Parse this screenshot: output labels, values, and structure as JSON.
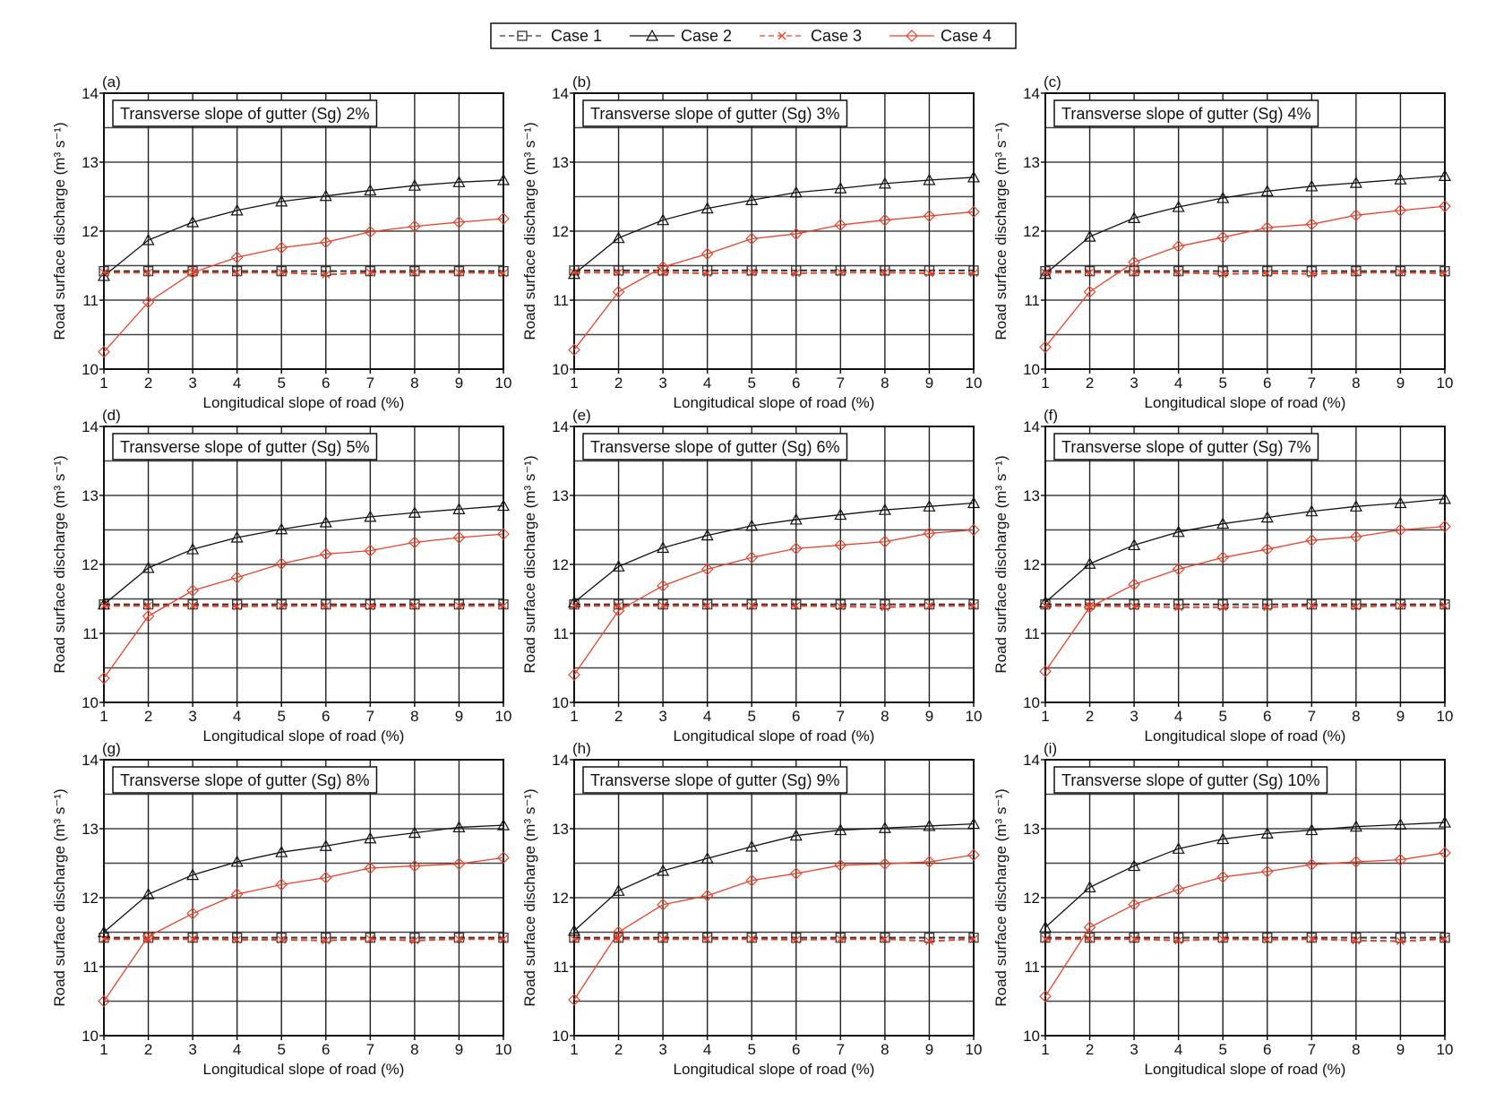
{
  "legend": [
    {
      "name": "Case 1",
      "color": "#333333",
      "dash": true,
      "marker": "square"
    },
    {
      "name": "Case 2",
      "color": "#111111",
      "dash": false,
      "marker": "triangle"
    },
    {
      "name": "Case 3",
      "color": "#e8432a",
      "dash": true,
      "marker": "x"
    },
    {
      "name": "Case 4",
      "color": "#e8432a",
      "dash": false,
      "marker": "diamond"
    }
  ],
  "chart_data": [
    {
      "type": "line",
      "panel": "(a)",
      "title": "Transverse slope of gutter (Sg) 2%",
      "xlabel": "Longitudical slope of road (%)",
      "ylabel": "Road surface discharge (m³ s⁻¹)",
      "x": [
        1,
        2,
        3,
        4,
        5,
        6,
        7,
        8,
        9,
        10
      ],
      "xlim": [
        1,
        10
      ],
      "ylim": [
        10,
        14
      ],
      "yticks": [
        10,
        11,
        12,
        13,
        14
      ],
      "grid": true,
      "series": [
        {
          "name": "Case 1",
          "values": [
            11.42,
            11.42,
            11.42,
            11.42,
            11.42,
            11.42,
            11.42,
            11.42,
            11.42,
            11.42
          ]
        },
        {
          "name": "Case 2",
          "values": [
            11.35,
            11.87,
            12.13,
            12.3,
            12.43,
            12.51,
            12.59,
            12.66,
            12.71,
            12.74
          ]
        },
        {
          "name": "Case 3",
          "values": [
            11.4,
            11.4,
            11.4,
            11.4,
            11.4,
            11.37,
            11.4,
            11.4,
            11.4,
            11.39
          ]
        },
        {
          "name": "Case 4",
          "values": [
            10.25,
            10.97,
            11.4,
            11.62,
            11.76,
            11.84,
            11.99,
            12.07,
            12.13,
            12.18
          ]
        }
      ]
    },
    {
      "type": "line",
      "panel": "(b)",
      "title": "Transverse slope of gutter (Sg) 3%",
      "xlabel": "Longitudical slope of road (%)",
      "ylabel": "Road surface discharge (m³ s⁻¹)",
      "x": [
        1,
        2,
        3,
        4,
        5,
        6,
        7,
        8,
        9,
        10
      ],
      "xlim": [
        1,
        10
      ],
      "ylim": [
        10,
        14
      ],
      "yticks": [
        10,
        11,
        12,
        13,
        14
      ],
      "grid": true,
      "series": [
        {
          "name": "Case 1",
          "values": [
            11.43,
            11.43,
            11.43,
            11.43,
            11.43,
            11.43,
            11.43,
            11.43,
            11.43,
            11.43
          ]
        },
        {
          "name": "Case 2",
          "values": [
            11.38,
            11.9,
            12.16,
            12.33,
            12.45,
            12.56,
            12.62,
            12.69,
            12.74,
            12.78
          ]
        },
        {
          "name": "Case 3",
          "values": [
            11.4,
            11.4,
            11.4,
            11.39,
            11.4,
            11.39,
            11.4,
            11.4,
            11.39,
            11.39
          ]
        },
        {
          "name": "Case 4",
          "values": [
            10.28,
            11.12,
            11.48,
            11.67,
            11.89,
            11.96,
            12.09,
            12.16,
            12.22,
            12.28
          ]
        }
      ]
    },
    {
      "type": "line",
      "panel": "(c)",
      "title": "Transverse slope of gutter (Sg) 4%",
      "xlabel": "Longitudical slope of road (%)",
      "ylabel": "Road surface discharge (m³ s⁻¹)",
      "x": [
        1,
        2,
        3,
        4,
        5,
        6,
        7,
        8,
        9,
        10
      ],
      "xlim": [
        1,
        10
      ],
      "ylim": [
        10,
        14
      ],
      "yticks": [
        10,
        11,
        12,
        13,
        14
      ],
      "grid": true,
      "series": [
        {
          "name": "Case 1",
          "values": [
            11.42,
            11.42,
            11.42,
            11.42,
            11.42,
            11.42,
            11.42,
            11.42,
            11.42,
            11.42
          ]
        },
        {
          "name": "Case 2",
          "values": [
            11.38,
            11.92,
            12.19,
            12.35,
            12.48,
            12.58,
            12.65,
            12.7,
            12.75,
            12.8
          ]
        },
        {
          "name": "Case 3",
          "values": [
            11.4,
            11.4,
            11.4,
            11.4,
            11.38,
            11.39,
            11.38,
            11.4,
            11.4,
            11.39
          ]
        },
        {
          "name": "Case 4",
          "values": [
            10.32,
            11.12,
            11.55,
            11.78,
            11.91,
            12.05,
            12.1,
            12.23,
            12.3,
            12.36
          ]
        }
      ]
    },
    {
      "type": "line",
      "panel": "(d)",
      "title": "Transverse slope of gutter (Sg) 5%",
      "xlabel": "Longitudical slope of road (%)",
      "ylabel": "Road surface discharge (m³ s⁻¹)",
      "x": [
        1,
        2,
        3,
        4,
        5,
        6,
        7,
        8,
        9,
        10
      ],
      "xlim": [
        1,
        10
      ],
      "ylim": [
        10,
        14
      ],
      "yticks": [
        10,
        11,
        12,
        13,
        14
      ],
      "grid": true,
      "series": [
        {
          "name": "Case 1",
          "values": [
            11.42,
            11.42,
            11.42,
            11.42,
            11.42,
            11.42,
            11.42,
            11.42,
            11.42,
            11.42
          ]
        },
        {
          "name": "Case 2",
          "values": [
            11.42,
            11.95,
            12.22,
            12.39,
            12.51,
            12.61,
            12.69,
            12.75,
            12.8,
            12.85
          ]
        },
        {
          "name": "Case 3",
          "values": [
            11.4,
            11.4,
            11.4,
            11.39,
            11.4,
            11.4,
            11.39,
            11.4,
            11.4,
            11.4
          ]
        },
        {
          "name": "Case 4",
          "values": [
            10.35,
            11.25,
            11.62,
            11.81,
            12.01,
            12.15,
            12.2,
            12.32,
            12.39,
            12.44
          ]
        }
      ]
    },
    {
      "type": "line",
      "panel": "(e)",
      "title": "Transverse slope of gutter (Sg) 6%",
      "xlabel": "Longitudical slope of road (%)",
      "ylabel": "Road surface discharge (m³ s⁻¹)",
      "x": [
        1,
        2,
        3,
        4,
        5,
        6,
        7,
        8,
        9,
        10
      ],
      "xlim": [
        1,
        10
      ],
      "ylim": [
        10,
        14
      ],
      "yticks": [
        10,
        11,
        12,
        13,
        14
      ],
      "grid": true,
      "series": [
        {
          "name": "Case 1",
          "values": [
            11.42,
            11.42,
            11.42,
            11.42,
            11.42,
            11.42,
            11.42,
            11.42,
            11.42,
            11.42
          ]
        },
        {
          "name": "Case 2",
          "values": [
            11.45,
            11.97,
            12.24,
            12.42,
            12.56,
            12.65,
            12.72,
            12.79,
            12.84,
            12.89
          ]
        },
        {
          "name": "Case 3",
          "values": [
            11.4,
            11.4,
            11.4,
            11.4,
            11.4,
            11.4,
            11.39,
            11.38,
            11.4,
            11.4
          ]
        },
        {
          "name": "Case 4",
          "values": [
            10.4,
            11.33,
            11.69,
            11.93,
            12.1,
            12.23,
            12.28,
            12.33,
            12.45,
            12.5
          ]
        }
      ]
    },
    {
      "type": "line",
      "panel": "(f)",
      "title": "Transverse slope of gutter (Sg) 7%",
      "xlabel": "Longitudical slope of road (%)",
      "ylabel": "Road surface discharge (m³ s⁻¹)",
      "x": [
        1,
        2,
        3,
        4,
        5,
        6,
        7,
        8,
        9,
        10
      ],
      "xlim": [
        1,
        10
      ],
      "ylim": [
        10,
        14
      ],
      "yticks": [
        10,
        11,
        12,
        13,
        14
      ],
      "grid": true,
      "series": [
        {
          "name": "Case 1",
          "values": [
            11.42,
            11.42,
            11.42,
            11.42,
            11.42,
            11.42,
            11.42,
            11.42,
            11.42,
            11.42
          ]
        },
        {
          "name": "Case 2",
          "values": [
            11.45,
            12.01,
            12.28,
            12.47,
            12.59,
            12.68,
            12.77,
            12.84,
            12.89,
            12.95
          ]
        },
        {
          "name": "Case 3",
          "values": [
            11.4,
            11.4,
            11.39,
            11.38,
            11.38,
            11.38,
            11.4,
            11.39,
            11.4,
            11.4
          ]
        },
        {
          "name": "Case 4",
          "values": [
            10.45,
            11.38,
            11.71,
            11.93,
            12.1,
            12.22,
            12.35,
            12.4,
            12.5,
            12.55
          ]
        }
      ]
    },
    {
      "type": "line",
      "panel": "(g)",
      "title": "Transverse slope of gutter (Sg) 8%",
      "xlabel": "Longitudical slope of road (%)",
      "ylabel": "Road surface discharge (m³ s⁻¹)",
      "x": [
        1,
        2,
        3,
        4,
        5,
        6,
        7,
        8,
        9,
        10
      ],
      "xlim": [
        1,
        10
      ],
      "ylim": [
        10,
        14
      ],
      "yticks": [
        10,
        11,
        12,
        13,
        14
      ],
      "grid": true,
      "series": [
        {
          "name": "Case 1",
          "values": [
            11.42,
            11.42,
            11.42,
            11.42,
            11.42,
            11.42,
            11.42,
            11.42,
            11.42,
            11.42
          ]
        },
        {
          "name": "Case 2",
          "values": [
            11.5,
            12.05,
            12.33,
            12.52,
            12.66,
            12.75,
            12.86,
            12.94,
            13.02,
            13.05
          ]
        },
        {
          "name": "Case 3",
          "values": [
            11.4,
            11.4,
            11.4,
            11.39,
            11.39,
            11.38,
            11.4,
            11.38,
            11.4,
            11.4
          ]
        },
        {
          "name": "Case 4",
          "values": [
            10.5,
            11.44,
            11.77,
            12.05,
            12.19,
            12.29,
            12.43,
            12.46,
            12.49,
            12.58
          ]
        }
      ]
    },
    {
      "type": "line",
      "panel": "(h)",
      "title": "Transverse slope of gutter (Sg) 9%",
      "xlabel": "Longitudical slope of road (%)",
      "ylabel": "Road surface discharge (m³ s⁻¹)",
      "x": [
        1,
        2,
        3,
        4,
        5,
        6,
        7,
        8,
        9,
        10
      ],
      "xlim": [
        1,
        10
      ],
      "ylim": [
        10,
        14
      ],
      "yticks": [
        10,
        11,
        12,
        13,
        14
      ],
      "grid": true,
      "series": [
        {
          "name": "Case 1",
          "values": [
            11.42,
            11.42,
            11.42,
            11.42,
            11.42,
            11.42,
            11.42,
            11.42,
            11.42,
            11.42
          ]
        },
        {
          "name": "Case 2",
          "values": [
            11.52,
            12.1,
            12.39,
            12.57,
            12.74,
            12.9,
            12.98,
            13.01,
            13.04,
            13.07
          ]
        },
        {
          "name": "Case 3",
          "values": [
            11.4,
            11.4,
            11.4,
            11.4,
            11.4,
            11.39,
            11.4,
            11.4,
            11.37,
            11.4
          ]
        },
        {
          "name": "Case 4",
          "values": [
            10.52,
            11.5,
            11.9,
            12.03,
            12.25,
            12.35,
            12.47,
            12.49,
            12.52,
            12.62
          ]
        }
      ]
    },
    {
      "type": "line",
      "panel": "(i)",
      "title": "Transverse slope of gutter (Sg) 10%",
      "xlabel": "Longitudical slope of road (%)",
      "ylabel": "Road surface discharge (m³ s⁻¹)",
      "x": [
        1,
        2,
        3,
        4,
        5,
        6,
        7,
        8,
        9,
        10
      ],
      "xlim": [
        1,
        10
      ],
      "ylim": [
        10,
        14
      ],
      "yticks": [
        10,
        11,
        12,
        13,
        14
      ],
      "grid": true,
      "series": [
        {
          "name": "Case 1",
          "values": [
            11.42,
            11.42,
            11.42,
            11.42,
            11.42,
            11.42,
            11.42,
            11.42,
            11.42,
            11.42
          ]
        },
        {
          "name": "Case 2",
          "values": [
            11.57,
            12.15,
            12.46,
            12.71,
            12.85,
            12.93,
            12.98,
            13.03,
            13.06,
            13.09
          ]
        },
        {
          "name": "Case 3",
          "values": [
            11.4,
            11.4,
            11.4,
            11.38,
            11.4,
            11.39,
            11.4,
            11.38,
            11.37,
            11.4
          ]
        },
        {
          "name": "Case 4",
          "values": [
            10.57,
            11.57,
            11.9,
            12.12,
            12.3,
            12.38,
            12.48,
            12.52,
            12.55,
            12.65
          ]
        }
      ]
    }
  ]
}
